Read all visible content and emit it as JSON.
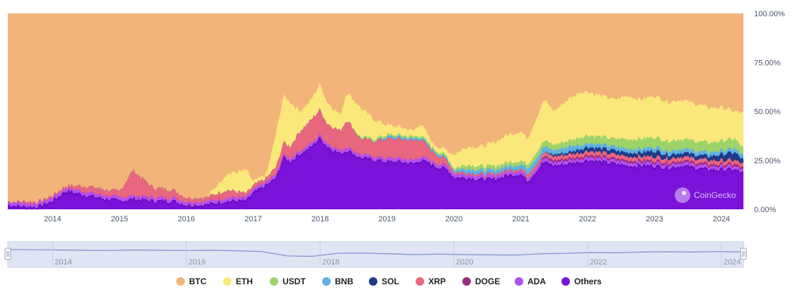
{
  "chart_data": {
    "type": "area",
    "stacked": "percent",
    "x_ticks": [
      "2014",
      "2015",
      "2016",
      "2017",
      "2018",
      "2019",
      "2020",
      "2021",
      "2022",
      "2023",
      "2024"
    ],
    "y_ticks": [
      "0.00%",
      "25.00%",
      "50.00%",
      "75.00%",
      "100.00%"
    ],
    "ylim": [
      0,
      100
    ],
    "xlim": [
      2013.33,
      2024.33
    ],
    "y_axis_position": "right",
    "grid": false,
    "legend_position": "bottom",
    "watermark": "CoinGecko",
    "navigator_ticks": [
      "2014",
      "2016",
      "2018",
      "2020",
      "2022",
      "2024"
    ],
    "series": [
      {
        "name": "BTC",
        "color": "#f3b47a"
      },
      {
        "name": "ETH",
        "color": "#fbe87a"
      },
      {
        "name": "USDT",
        "color": "#9ed36a"
      },
      {
        "name": "BNB",
        "color": "#5fb0e3"
      },
      {
        "name": "SOL",
        "color": "#1e3a8a"
      },
      {
        "name": "XRP",
        "color": "#e8667e"
      },
      {
        "name": "DOGE",
        "color": "#9b2c7e"
      },
      {
        "name": "ADA",
        "color": "#b44ff0"
      },
      {
        "name": "Others",
        "color": "#7a12d9"
      }
    ],
    "cumulative_bands": {
      "x": [
        2013.33,
        2013.6,
        2013.8,
        2014.0,
        2014.2,
        2014.5,
        2014.8,
        2015.0,
        2015.2,
        2015.5,
        2015.8,
        2016.0,
        2016.3,
        2016.6,
        2016.9,
        2017.0,
        2017.2,
        2017.35,
        2017.45,
        2017.55,
        2017.7,
        2017.85,
        2018.0,
        2018.1,
        2018.3,
        2018.4,
        2018.6,
        2018.8,
        2019.0,
        2019.2,
        2019.4,
        2019.5,
        2019.7,
        2019.9,
        2020.0,
        2020.2,
        2020.4,
        2020.6,
        2020.8,
        2021.0,
        2021.1,
        2021.25,
        2021.35,
        2021.5,
        2021.7,
        2021.9,
        2022.0,
        2022.2,
        2022.4,
        2022.6,
        2022.8,
        2023.0,
        2023.2,
        2023.4,
        2023.6,
        2023.8,
        2024.0,
        2024.2,
        2024.33
      ],
      "ADA": [
        4,
        3,
        3,
        6,
        11,
        9,
        7,
        6,
        7,
        6,
        6,
        4,
        4,
        6,
        6,
        10,
        14,
        18,
        28,
        26,
        30,
        33,
        38,
        34,
        30,
        32,
        28,
        27,
        26,
        26,
        25,
        27,
        24,
        22,
        18,
        18,
        17,
        17,
        19,
        20,
        16,
        22,
        26,
        24,
        25,
        26,
        27,
        26,
        25,
        24,
        24,
        24,
        23,
        24,
        23,
        22,
        22,
        22,
        20
      ],
      "DOGE": [
        4,
        3,
        3,
        6,
        11,
        9,
        7,
        6,
        7,
        6,
        6,
        4,
        4,
        6,
        6,
        10,
        14,
        18,
        28,
        26,
        30,
        33,
        38,
        34,
        30,
        32,
        28,
        27,
        26,
        26,
        25,
        27,
        24,
        22,
        18,
        18,
        17,
        17,
        19,
        20,
        16,
        22,
        27,
        25,
        26,
        27,
        28,
        27,
        26,
        25,
        25,
        25,
        24,
        25,
        24,
        23,
        23,
        23,
        21
      ],
      "XRP": [
        4,
        4,
        4,
        7,
        12,
        12,
        10,
        9,
        20,
        11,
        10,
        6,
        6,
        10,
        8,
        12,
        16,
        22,
        34,
        32,
        40,
        45,
        51,
        44,
        40,
        46,
        36,
        35,
        36,
        36,
        35,
        36,
        29,
        25,
        19,
        19,
        18,
        18,
        20,
        21,
        18,
        24,
        29,
        27,
        28,
        29,
        30,
        29,
        28,
        27,
        27,
        27,
        26,
        27,
        26,
        25,
        25,
        25,
        23
      ],
      "SOL": [
        4,
        4,
        4,
        7,
        12,
        12,
        10,
        9,
        20,
        11,
        10,
        6,
        6,
        10,
        8,
        12,
        16,
        22,
        34,
        32,
        40,
        45,
        51,
        44,
        40,
        46,
        36,
        35,
        36,
        36,
        35,
        36,
        29,
        25,
        19,
        19,
        18,
        18,
        20,
        21,
        18,
        24,
        29,
        28,
        29,
        31,
        32,
        31,
        30,
        29,
        29,
        30,
        28,
        29,
        28,
        27,
        28,
        29,
        25
      ],
      "BNB": [
        4,
        4,
        4,
        7,
        12,
        12,
        10,
        9,
        20,
        11,
        10,
        6,
        6,
        10,
        8,
        12,
        16,
        22,
        34,
        32,
        40,
        45,
        51,
        44,
        40,
        46,
        36,
        35,
        37,
        37,
        36,
        37,
        30,
        26,
        20,
        21,
        20,
        20,
        22,
        23,
        21,
        27,
        32,
        30,
        32,
        33,
        34,
        33,
        32,
        31,
        31,
        32,
        30,
        31,
        30,
        29,
        30,
        31,
        27
      ],
      "USDT": [
        4,
        4,
        4,
        7,
        12,
        12,
        10,
        9,
        20,
        11,
        10,
        6,
        6,
        10,
        8,
        12,
        16,
        22,
        34,
        32,
        40,
        45,
        51,
        44,
        40,
        46,
        37,
        36,
        38,
        38,
        37,
        38,
        31,
        27,
        21,
        23,
        22,
        22,
        24,
        25,
        23,
        30,
        35,
        33,
        35,
        37,
        38,
        37,
        36,
        36,
        36,
        37,
        35,
        36,
        35,
        34,
        35,
        36,
        31
      ],
      "ETH": [
        4,
        4,
        4,
        7,
        12,
        12,
        10,
        9,
        20,
        11,
        10,
        6,
        6,
        18,
        20,
        14,
        18,
        40,
        58,
        55,
        50,
        55,
        64,
        55,
        48,
        60,
        52,
        46,
        43,
        42,
        40,
        44,
        33,
        30,
        28,
        32,
        32,
        34,
        38,
        40,
        36,
        48,
        56,
        50,
        56,
        60,
        60,
        58,
        56,
        58,
        56,
        58,
        55,
        56,
        54,
        52,
        52,
        50,
        49
      ]
    }
  },
  "legend": [
    {
      "label": "BTC",
      "color": "#f3b47a"
    },
    {
      "label": "ETH",
      "color": "#fbe87a"
    },
    {
      "label": "USDT",
      "color": "#9ed36a"
    },
    {
      "label": "BNB",
      "color": "#5fb0e3"
    },
    {
      "label": "SOL",
      "color": "#1e3a8a"
    },
    {
      "label": "XRP",
      "color": "#e8667e"
    },
    {
      "label": "DOGE",
      "color": "#9b2c7e"
    },
    {
      "label": "ADA",
      "color": "#b44ff0"
    },
    {
      "label": "Others",
      "color": "#7a12d9"
    }
  ],
  "navigator": {
    "line": [
      70,
      69,
      68,
      67,
      66,
      68,
      67,
      66,
      67,
      65,
      62,
      45,
      43,
      55,
      56,
      53,
      50,
      52,
      50,
      49,
      48,
      53,
      55,
      58,
      57,
      60,
      61,
      60,
      62,
      60
    ],
    "line_color": "#7d8fc9",
    "fill_color": "#dfe5f3"
  }
}
